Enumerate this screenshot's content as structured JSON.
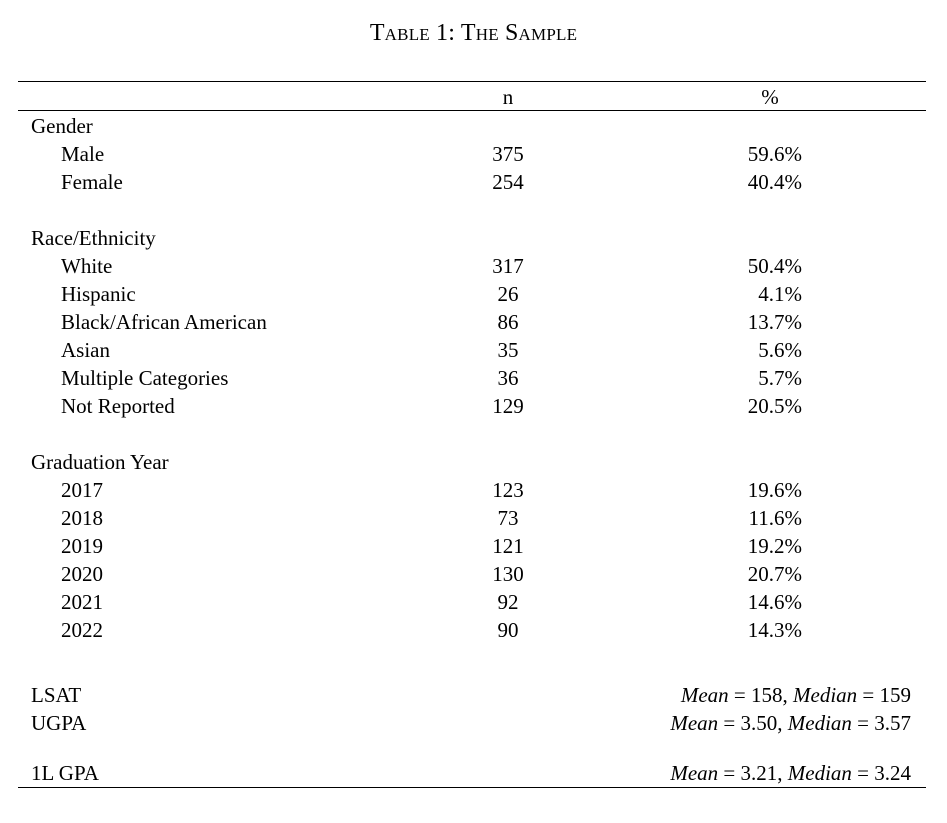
{
  "title": "Table 1: The Sample",
  "columns": {
    "n": "n",
    "pct": "%"
  },
  "sections": [
    {
      "label": "Gender",
      "rows": [
        {
          "label": "Male",
          "n": "375",
          "pct": "59.6%"
        },
        {
          "label": "Female",
          "n": "254",
          "pct": "40.4%"
        }
      ]
    },
    {
      "label": "Race/Ethnicity",
      "rows": [
        {
          "label": "White",
          "n": "317",
          "pct": "50.4%"
        },
        {
          "label": "Hispanic",
          "n": "26",
          "pct": "4.1%"
        },
        {
          "label": "Black/African American",
          "n": "86",
          "pct": "13.7%"
        },
        {
          "label": "Asian",
          "n": "35",
          "pct": "5.6%"
        },
        {
          "label": "Multiple Categories",
          "n": "36",
          "pct": "5.7%"
        },
        {
          "label": "Not Reported",
          "n": "129",
          "pct": "20.5%"
        }
      ]
    },
    {
      "label": "Graduation Year",
      "rows": [
        {
          "label": "2017",
          "n": "123",
          "pct": "19.6%"
        },
        {
          "label": "2018",
          "n": "73",
          "pct": "11.6%"
        },
        {
          "label": "2019",
          "n": "121",
          "pct": "19.2%"
        },
        {
          "label": "2020",
          "n": "130",
          "pct": "20.7%"
        },
        {
          "label": "2021",
          "n": "92",
          "pct": "14.6%"
        },
        {
          "label": "2022",
          "n": "90",
          "pct": "14.3%"
        }
      ]
    }
  ],
  "summary": [
    {
      "label": "LSAT",
      "mean_label": "Mean",
      "mean": "158",
      "median_label": "Median",
      "median": "159"
    },
    {
      "label": "UGPA",
      "mean_label": "Mean",
      "mean": "3.50",
      "median_label": "Median",
      "median": "3.57"
    },
    {
      "label": "1L GPA",
      "mean_label": "Mean",
      "mean": "3.21",
      "median_label": "Median",
      "median": "3.24"
    }
  ]
}
